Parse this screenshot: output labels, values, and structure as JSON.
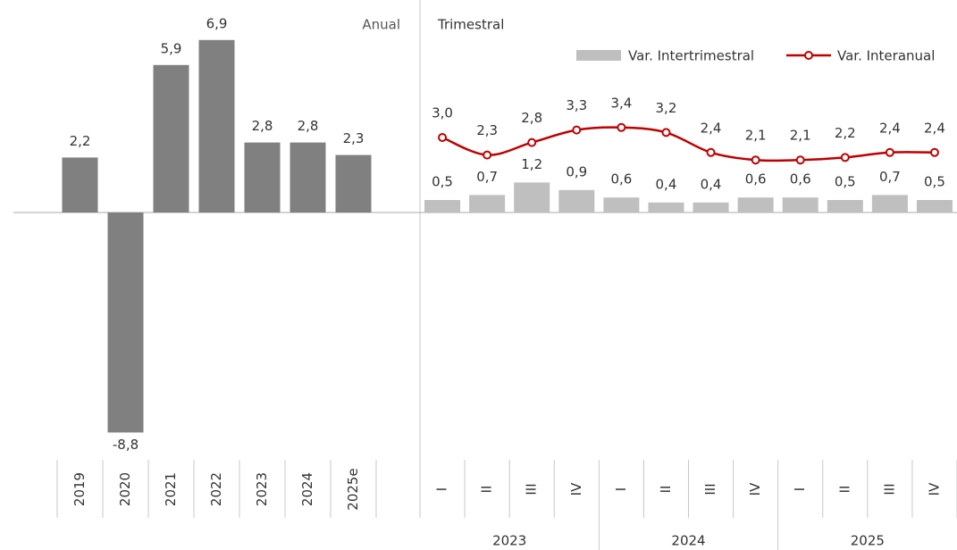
{
  "chart_data": [
    {
      "type": "bar",
      "title": "Anual",
      "categories": [
        "2019",
        "2020",
        "2021",
        "2022",
        "2023",
        "2024",
        "2025e"
      ],
      "values": [
        2.2,
        -8.8,
        5.9,
        6.9,
        2.8,
        2.8,
        2.3
      ],
      "value_labels": [
        "2,2",
        "-8,8",
        "5,9",
        "6,9",
        "2,8",
        "2,8",
        "2,3"
      ],
      "color": "#808080",
      "ylim": [
        -10,
        8
      ]
    },
    {
      "type": "combo",
      "title": "Trimestral",
      "categories": [
        "I",
        "II",
        "III",
        "IV",
        "I",
        "II",
        "III",
        "IV",
        "I",
        "II",
        "III",
        "IV"
      ],
      "group_labels": [
        "2023",
        "2024",
        "2025"
      ],
      "series": [
        {
          "name": "Var. Intertrimestral",
          "type": "bar",
          "color": "#bfbfbf",
          "values": [
            0.5,
            0.7,
            1.2,
            0.9,
            0.6,
            0.4,
            0.4,
            0.6,
            0.6,
            0.5,
            0.7,
            0.5
          ],
          "value_labels": [
            "0,5",
            "0,7",
            "1,2",
            "0,9",
            "0,6",
            "0,4",
            "0,4",
            "0,6",
            "0,6",
            "0,5",
            "0,7",
            "0,5"
          ]
        },
        {
          "name": "Var. Interanual",
          "type": "line",
          "color": "#c00000",
          "values": [
            3.0,
            2.3,
            2.8,
            3.3,
            3.4,
            3.2,
            2.4,
            2.1,
            2.1,
            2.2,
            2.4,
            2.4
          ],
          "value_labels": [
            "3,0",
            "2,3",
            "2,8",
            "3,3",
            "3,4",
            "3,2",
            "2,4",
            "2,1",
            "2,1",
            "2,2",
            "2,4",
            "2,4"
          ]
        }
      ],
      "ylim": [
        -10,
        8
      ]
    }
  ]
}
